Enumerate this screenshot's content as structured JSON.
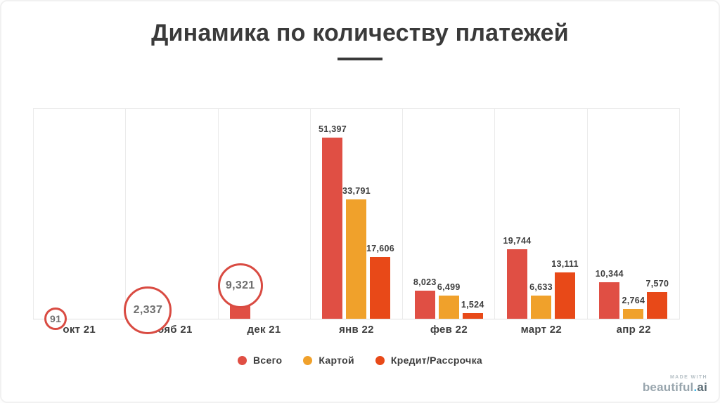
{
  "page": {
    "title": "Динамика по количеству платежей",
    "logo": {
      "made_with": "MADE WITH",
      "brand": "beautiful",
      "dot": ".",
      "tld": "ai"
    }
  },
  "colors": {
    "total": "#E04F44",
    "card": "#F0A12B",
    "credit": "#E84918",
    "callout_border": "#D94B42",
    "title_text": "#3A3A3A",
    "label_text": "#3D3D3D",
    "gridline": "#EBEBEB",
    "baseline": "#E0E0E0"
  },
  "chart_data": {
    "type": "bar",
    "title": "Динамика по количеству платежей",
    "xlabel": "",
    "ylabel": "",
    "ylim": [
      0,
      60000
    ],
    "grid": "vertical-column-separators",
    "legend_position": "bottom-center",
    "categories": [
      "окт 21",
      "нояб 21",
      "дек 21",
      "янв 22",
      "фев 22",
      "март 22",
      "апр 22"
    ],
    "series": [
      {
        "name": "Всего",
        "color": "#E04F44",
        "values": [
          91,
          2337,
          9321,
          51397,
          8023,
          19744,
          10344
        ],
        "labels": [
          "91",
          "2,337",
          "9,321",
          "51,397",
          "8,023",
          "19,744",
          "10,344"
        ]
      },
      {
        "name": "Картой",
        "color": "#F0A12B",
        "values": [
          null,
          null,
          null,
          33791,
          6499,
          6633,
          2764
        ],
        "labels": [
          null,
          null,
          null,
          "33,791",
          "6,499",
          "6,633",
          "2,764"
        ]
      },
      {
        "name": "Кредит/Рассрочка",
        "color": "#E84918",
        "values": [
          null,
          null,
          null,
          17606,
          1524,
          13111,
          7570
        ],
        "labels": [
          null,
          null,
          null,
          "17,606",
          "1,524",
          "13,111",
          "7,570"
        ]
      }
    ],
    "callouts": [
      {
        "category_index": 0,
        "series_index": 0,
        "label": "91",
        "radius": 16,
        "font_size": 14
      },
      {
        "category_index": 1,
        "series_index": 0,
        "label": "2,337",
        "radius": 34,
        "font_size": 16
      },
      {
        "category_index": 2,
        "series_index": 0,
        "label": "9,321",
        "radius": 32,
        "font_size": 16
      }
    ]
  }
}
